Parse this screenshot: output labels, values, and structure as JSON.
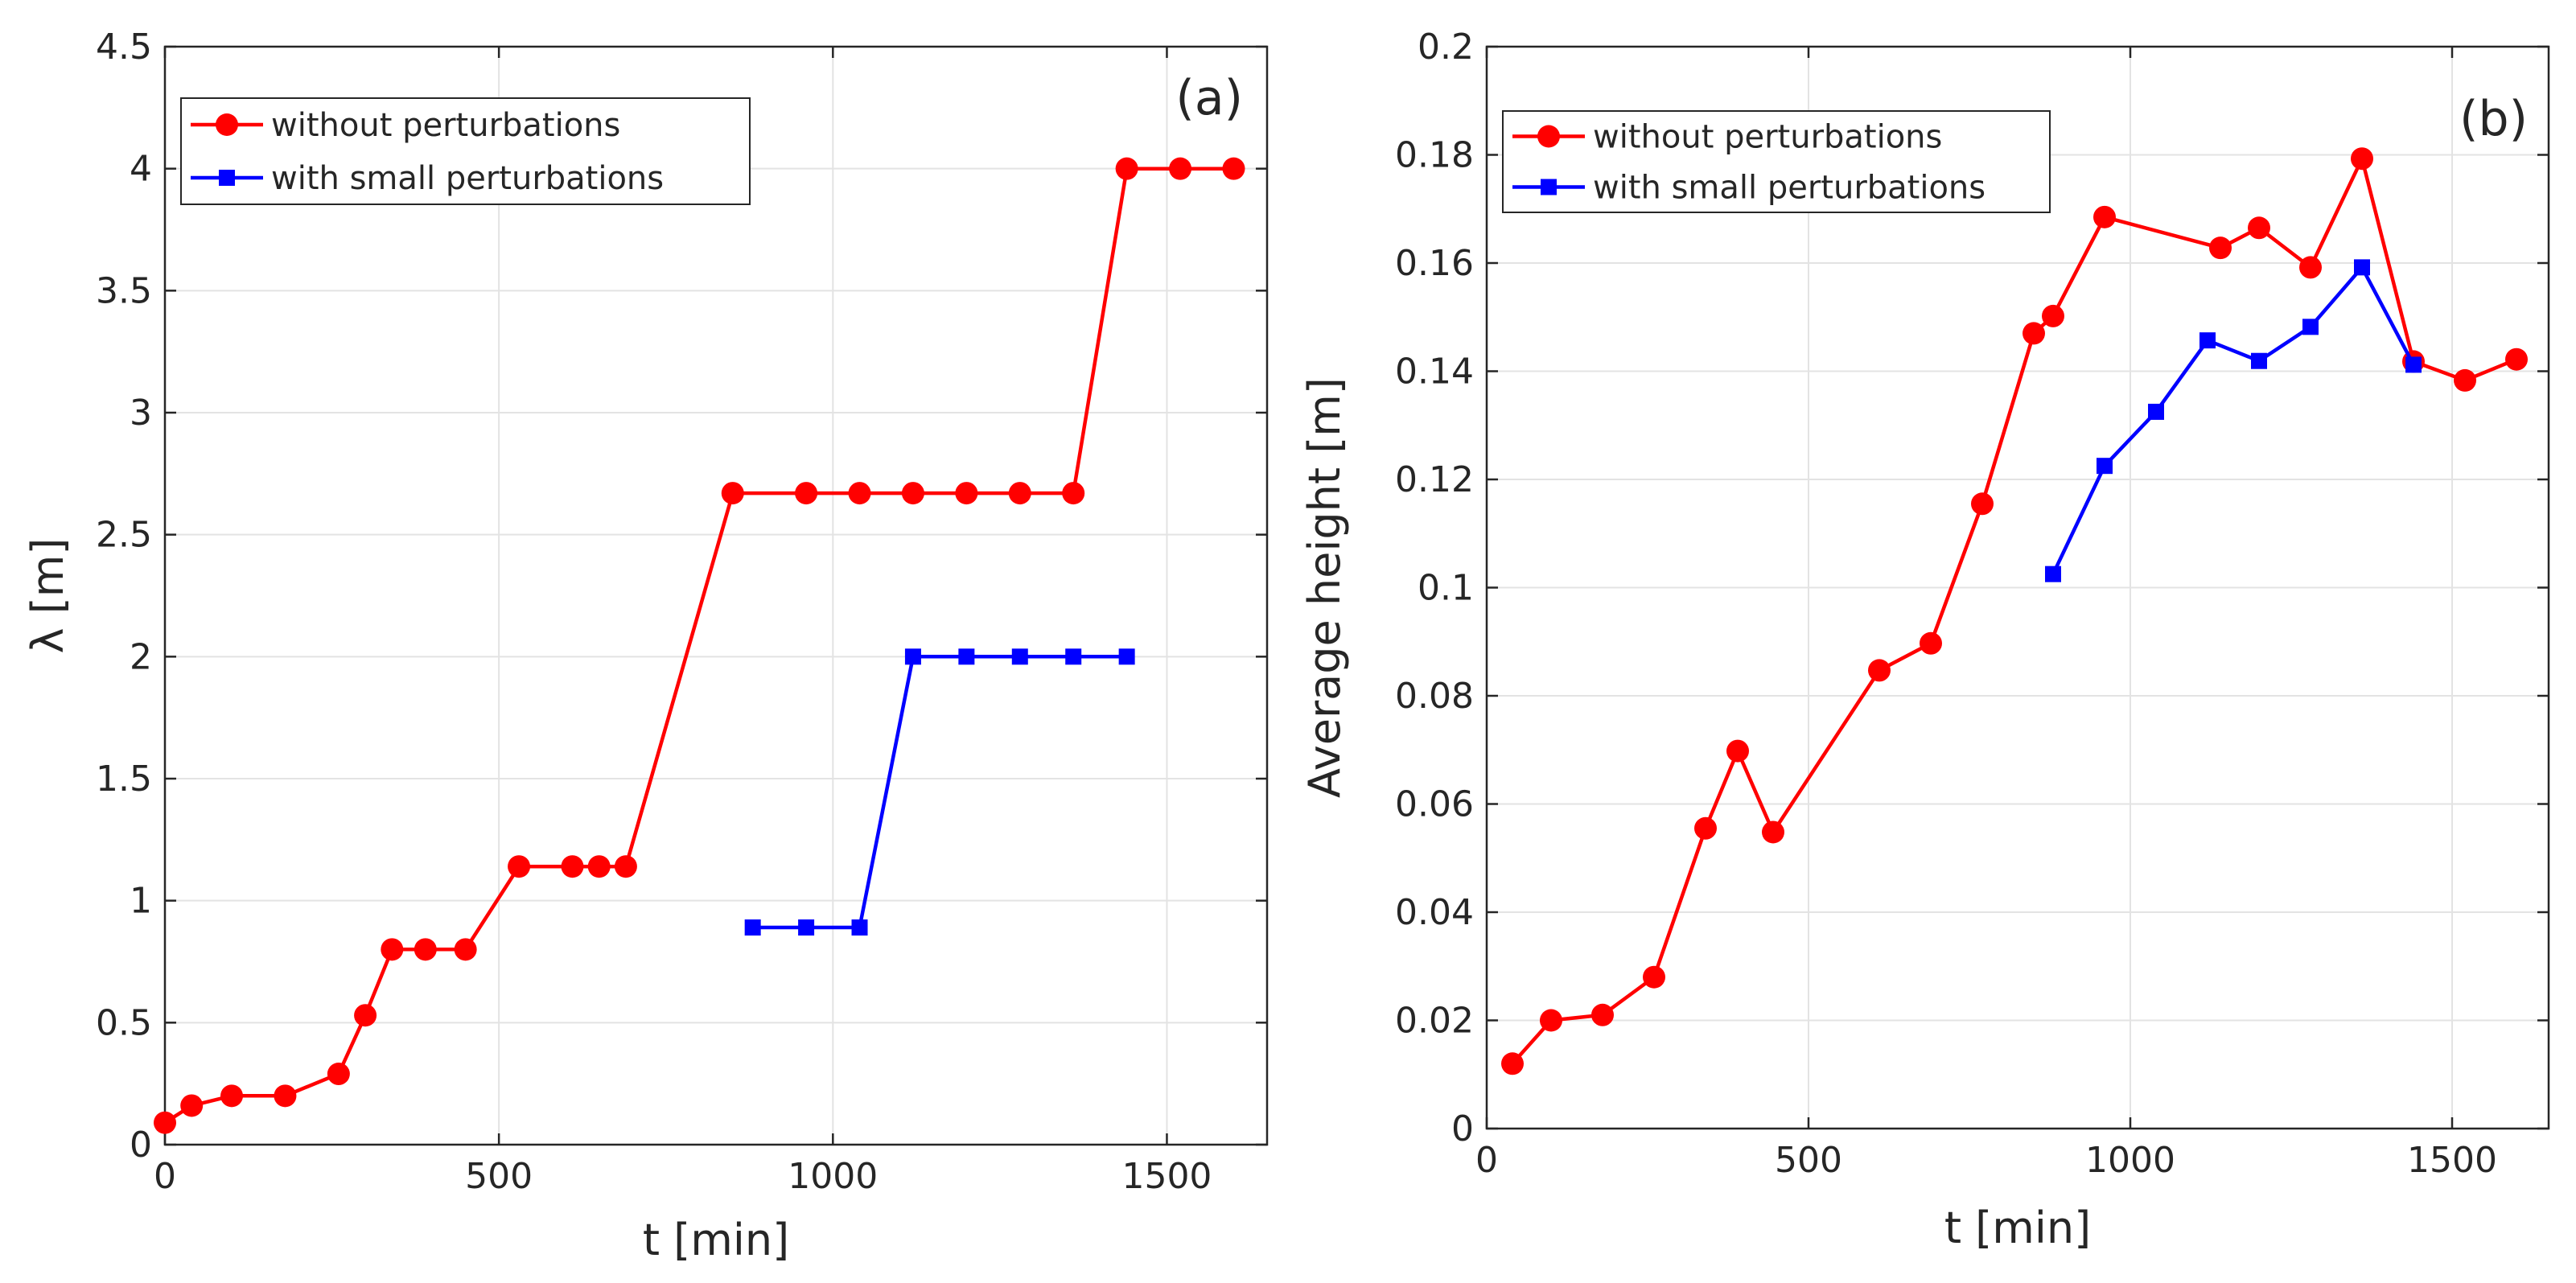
{
  "chart_data": [
    {
      "type": "line",
      "panel_label": "(a)",
      "title": "",
      "xlabel": "t [min]",
      "ylabel": "λ [m]",
      "xlim": [
        0,
        1650
      ],
      "ylim": [
        0,
        4.5
      ],
      "xticks": [
        0,
        500,
        1000,
        1500
      ],
      "yticks": [
        0,
        0.5,
        1,
        1.5,
        2,
        2.5,
        3,
        3.5,
        4,
        4.5
      ],
      "xtick_labels": [
        "0",
        "500",
        "1000",
        "1500"
      ],
      "ytick_labels": [
        "0",
        "0.5",
        "1",
        "1.5",
        "2",
        "2.5",
        "3",
        "3.5",
        "4",
        "4.5"
      ],
      "grid": true,
      "legend_position": "top-left",
      "series": [
        {
          "name": "without perturbations",
          "color": "#ff0000",
          "marker": "circle",
          "x": [
            0,
            40,
            100,
            180,
            260,
            300,
            340,
            390,
            450,
            530,
            610,
            650,
            690,
            850,
            960,
            1040,
            1120,
            1200,
            1280,
            1360,
            1440,
            1520,
            1600
          ],
          "y": [
            0.09,
            0.16,
            0.2,
            0.2,
            0.29,
            0.53,
            0.8,
            0.8,
            0.8,
            1.14,
            1.14,
            1.14,
            1.14,
            2.67,
            2.67,
            2.67,
            2.67,
            2.67,
            2.67,
            2.67,
            4.0,
            4.0,
            4.0
          ]
        },
        {
          "name": "with small perturbations",
          "color": "#0000ff",
          "marker": "square",
          "x": [
            880,
            960,
            1040,
            1120,
            1200,
            1280,
            1360,
            1440
          ],
          "y": [
            0.89,
            0.89,
            0.89,
            2.0,
            2.0,
            2.0,
            2.0,
            2.0
          ]
        }
      ]
    },
    {
      "type": "line",
      "panel_label": "(b)",
      "title": "",
      "xlabel": "t [min]",
      "ylabel": "Average height [m]",
      "xlim": [
        0,
        1650
      ],
      "ylim": [
        0,
        0.2
      ],
      "xticks": [
        0,
        500,
        1000,
        1500
      ],
      "yticks": [
        0,
        0.02,
        0.04,
        0.06,
        0.08,
        0.1,
        0.12,
        0.14,
        0.16,
        0.18,
        0.2
      ],
      "xtick_labels": [
        "0",
        "500",
        "1000",
        "1500"
      ],
      "ytick_labels": [
        "0",
        "0.02",
        "0.04",
        "0.06",
        "0.08",
        "0.1",
        "0.12",
        "0.14",
        "0.16",
        "0.18",
        "0.2"
      ],
      "grid": true,
      "legend_position": "top-left",
      "series": [
        {
          "name": "without perturbations",
          "color": "#ff0000",
          "marker": "circle",
          "x": [
            40,
            100,
            180,
            260,
            340,
            390,
            445,
            610,
            690,
            770,
            850,
            880,
            960,
            1140,
            1200,
            1280,
            1360,
            1440,
            1520,
            1600
          ],
          "y": [
            0.012,
            0.02,
            0.021,
            0.028,
            0.0555,
            0.0698,
            0.0548,
            0.0847,
            0.0897,
            0.1155,
            0.147,
            0.1502,
            0.1685,
            0.1628,
            0.1665,
            0.1592,
            0.1793,
            0.1418,
            0.1383,
            0.1422
          ]
        },
        {
          "name": "with small perturbations",
          "color": "#0000ff",
          "marker": "square",
          "x": [
            880,
            960,
            1040,
            1120,
            1200,
            1280,
            1360,
            1440
          ],
          "y": [
            0.1025,
            0.1225,
            0.1325,
            0.1457,
            0.1419,
            0.1482,
            0.1592,
            0.1412
          ]
        }
      ]
    }
  ]
}
